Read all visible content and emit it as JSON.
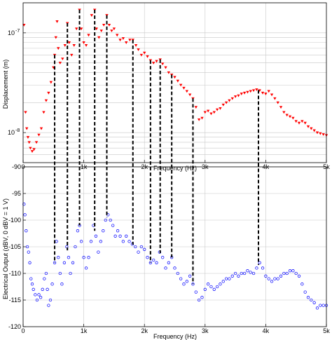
{
  "chart_data": [
    {
      "type": "scatter",
      "title": "",
      "xlabel": "Frequency (Hz)",
      "ylabel": "Displacement (m)",
      "xlim": [
        0,
        5000
      ],
      "ylog": true,
      "ylim": [
        5e-09,
        2e-07
      ],
      "grid": true,
      "x_ticks": [
        {
          "value": 0,
          "label": "0"
        },
        {
          "value": 1000,
          "label": "1k"
        },
        {
          "value": 2000,
          "label": "2k"
        },
        {
          "value": 3000,
          "label": "3k"
        },
        {
          "value": 4000,
          "label": "4k"
        },
        {
          "value": 5000,
          "label": "5k"
        }
      ],
      "y_ticks": [
        {
          "value": 1e-08,
          "label": "10",
          "exp": "-8"
        },
        {
          "value": 1e-07,
          "label": "10",
          "exp": "-7"
        }
      ],
      "marker_color": "#ff0000",
      "series": [
        {
          "marker": "triangle-down",
          "points": [
            [
              15,
              1.2e-07
            ],
            [
              40,
              1.6e-08
            ],
            [
              60,
              1.1e-08
            ],
            [
              80,
              9e-09
            ],
            [
              100,
              8e-09
            ],
            [
              120,
              7e-09
            ],
            [
              150,
              6.5e-09
            ],
            [
              180,
              6.8e-09
            ],
            [
              220,
              8e-09
            ],
            [
              260,
              9.5e-09
            ],
            [
              300,
              1.1e-08
            ],
            [
              340,
              1.6e-08
            ],
            [
              380,
              2.1e-08
            ],
            [
              420,
              2.5e-08
            ],
            [
              460,
              3.2e-08
            ],
            [
              500,
              4.5e-08
            ],
            [
              520,
              6e-08
            ],
            [
              540,
              9e-08
            ],
            [
              560,
              1.3e-07
            ],
            [
              580,
              7e-08
            ],
            [
              610,
              5e-08
            ],
            [
              650,
              5.5e-08
            ],
            [
              690,
              7.5e-08
            ],
            [
              730,
              1.25e-07
            ],
            [
              760,
              8e-08
            ],
            [
              800,
              6e-08
            ],
            [
              840,
              7.5e-08
            ],
            [
              880,
              1.1e-07
            ],
            [
              930,
              1.7e-07
            ],
            [
              960,
              1.1e-07
            ],
            [
              1000,
              8e-08
            ],
            [
              1040,
              7.5e-08
            ],
            [
              1080,
              9.5e-08
            ],
            [
              1130,
              1.5e-07
            ],
            [
              1180,
              1.7e-07
            ],
            [
              1210,
              1.1e-07
            ],
            [
              1250,
              9e-08
            ],
            [
              1290,
              1.05e-07
            ],
            [
              1330,
              1.2e-07
            ],
            [
              1380,
              1.5e-07
            ],
            [
              1420,
              1.2e-07
            ],
            [
              1460,
              1.05e-07
            ],
            [
              1500,
              1.1e-07
            ],
            [
              1550,
              9.5e-08
            ],
            [
              1600,
              8.5e-08
            ],
            [
              1650,
              8.8e-08
            ],
            [
              1700,
              8e-08
            ],
            [
              1760,
              8.5e-08
            ],
            [
              1810,
              8.5e-08
            ],
            [
              1860,
              7.5e-08
            ],
            [
              1900,
              6.8e-08
            ],
            [
              1950,
              6e-08
            ],
            [
              2000,
              6.3e-08
            ],
            [
              2050,
              5.8e-08
            ],
            [
              2100,
              5.3e-08
            ],
            [
              2150,
              5e-08
            ],
            [
              2200,
              5.2e-08
            ],
            [
              2260,
              5.4e-08
            ],
            [
              2300,
              4.9e-08
            ],
            [
              2350,
              4.5e-08
            ],
            [
              2400,
              4e-08
            ],
            [
              2450,
              3.8e-08
            ],
            [
              2500,
              3.6e-08
            ],
            [
              2550,
              3.3e-08
            ],
            [
              2600,
              3e-08
            ],
            [
              2650,
              2.8e-08
            ],
            [
              2700,
              2.6e-08
            ],
            [
              2750,
              2.4e-08
            ],
            [
              2800,
              2.2e-08
            ],
            [
              2850,
              1.8e-08
            ],
            [
              2900,
              1.35e-08
            ],
            [
              2950,
              1.4e-08
            ],
            [
              3000,
              1.6e-08
            ],
            [
              3050,
              1.65e-08
            ],
            [
              3100,
              1.55e-08
            ],
            [
              3150,
              1.6e-08
            ],
            [
              3200,
              1.7e-08
            ],
            [
              3250,
              1.75e-08
            ],
            [
              3300,
              1.9e-08
            ],
            [
              3350,
              2e-08
            ],
            [
              3400,
              2.1e-08
            ],
            [
              3450,
              2.2e-08
            ],
            [
              3500,
              2.3e-08
            ],
            [
              3550,
              2.35e-08
            ],
            [
              3600,
              2.45e-08
            ],
            [
              3650,
              2.5e-08
            ],
            [
              3700,
              2.55e-08
            ],
            [
              3750,
              2.6e-08
            ],
            [
              3800,
              2.65e-08
            ],
            [
              3850,
              2.7e-08
            ],
            [
              3900,
              2.65e-08
            ],
            [
              3950,
              2.5e-08
            ],
            [
              4000,
              2.45e-08
            ],
            [
              4050,
              2.6e-08
            ],
            [
              4100,
              2.4e-08
            ],
            [
              4150,
              2.2e-08
            ],
            [
              4200,
              2e-08
            ],
            [
              4250,
              1.8e-08
            ],
            [
              4300,
              1.6e-08
            ],
            [
              4350,
              1.5e-08
            ],
            [
              4400,
              1.45e-08
            ],
            [
              4450,
              1.4e-08
            ],
            [
              4500,
              1.3e-08
            ],
            [
              4550,
              1.25e-08
            ],
            [
              4600,
              1.3e-08
            ],
            [
              4650,
              1.25e-08
            ],
            [
              4700,
              1.15e-08
            ],
            [
              4750,
              1.1e-08
            ],
            [
              4800,
              1.05e-08
            ],
            [
              4850,
              1e-08
            ],
            [
              4900,
              9.8e-09
            ],
            [
              4950,
              9.6e-09
            ],
            [
              5000,
              9.4e-09
            ]
          ]
        }
      ]
    },
    {
      "type": "scatter",
      "title": "",
      "xlabel": "Frequency (Hz)",
      "ylabel": "Electrical Output (dBV, 0 dBV = 1 V)",
      "xlim": [
        0,
        5000
      ],
      "ylim": [
        -120,
        -90
      ],
      "grid": true,
      "x_ticks": [
        {
          "value": 0,
          "label": "0"
        },
        {
          "value": 1000,
          "label": "1k"
        },
        {
          "value": 2000,
          "label": "2k"
        },
        {
          "value": 3000,
          "label": "3k"
        },
        {
          "value": 4000,
          "label": "4k"
        },
        {
          "value": 5000,
          "label": "5k"
        }
      ],
      "y_ticks": [
        {
          "value": -90,
          "label": "-90"
        },
        {
          "value": -95,
          "label": "-95"
        },
        {
          "value": -100,
          "label": "-100"
        },
        {
          "value": -105,
          "label": "-105"
        },
        {
          "value": -110,
          "label": "-110"
        },
        {
          "value": -115,
          "label": "-115"
        },
        {
          "value": -120,
          "label": "-120"
        }
      ],
      "marker_color": "#0000ff",
      "series": [
        {
          "marker": "circle",
          "points": [
            [
              15,
              -97
            ],
            [
              30,
              -99
            ],
            [
              50,
              -102
            ],
            [
              70,
              -105
            ],
            [
              90,
              -106
            ],
            [
              110,
              -108
            ],
            [
              130,
              -111
            ],
            [
              150,
              -112
            ],
            [
              170,
              -113
            ],
            [
              200,
              -114
            ],
            [
              230,
              -115
            ],
            [
              260,
              -114
            ],
            [
              290,
              -114.5
            ],
            [
              320,
              -113
            ],
            [
              350,
              -111
            ],
            [
              380,
              -110
            ],
            [
              400,
              -113
            ],
            [
              420,
              -116
            ],
            [
              450,
              -115
            ],
            [
              480,
              -112
            ],
            [
              520,
              -108
            ],
            [
              550,
              -104
            ],
            [
              580,
              -107
            ],
            [
              610,
              -110
            ],
            [
              640,
              -112
            ],
            [
              680,
              -108
            ],
            [
              720,
              -105
            ],
            [
              750,
              -107
            ],
            [
              780,
              -110
            ],
            [
              820,
              -108
            ],
            [
              860,
              -105
            ],
            [
              900,
              -102
            ],
            [
              930,
              -101
            ],
            [
              960,
              -104
            ],
            [
              1000,
              -107
            ],
            [
              1040,
              -109
            ],
            [
              1080,
              -107
            ],
            [
              1120,
              -104
            ],
            [
              1160,
              -101
            ],
            [
              1200,
              -103
            ],
            [
              1240,
              -106
            ],
            [
              1280,
              -104
            ],
            [
              1320,
              -102
            ],
            [
              1360,
              -100
            ],
            [
              1400,
              -99
            ],
            [
              1440,
              -100
            ],
            [
              1480,
              -101
            ],
            [
              1520,
              -103
            ],
            [
              1560,
              -102
            ],
            [
              1600,
              -103
            ],
            [
              1650,
              -104
            ],
            [
              1700,
              -103
            ],
            [
              1750,
              -104
            ],
            [
              1800,
              -104.5
            ],
            [
              1850,
              -105
            ],
            [
              1900,
              -106
            ],
            [
              1950,
              -105
            ],
            [
              2000,
              -105.5
            ],
            [
              2050,
              -107
            ],
            [
              2100,
              -108
            ],
            [
              2150,
              -107.5
            ],
            [
              2200,
              -108
            ],
            [
              2250,
              -106
            ],
            [
              2300,
              -107
            ],
            [
              2350,
              -109
            ],
            [
              2400,
              -108
            ],
            [
              2450,
              -107
            ],
            [
              2500,
              -109
            ],
            [
              2550,
              -110
            ],
            [
              2600,
              -111
            ],
            [
              2650,
              -112
            ],
            [
              2700,
              -111.5
            ],
            [
              2750,
              -110.5
            ],
            [
              2800,
              -112
            ],
            [
              2850,
              -113.5
            ],
            [
              2900,
              -115
            ],
            [
              2950,
              -114.5
            ],
            [
              3000,
              -113
            ],
            [
              3050,
              -112
            ],
            [
              3100,
              -112.5
            ],
            [
              3150,
              -113
            ],
            [
              3200,
              -112.5
            ],
            [
              3250,
              -112
            ],
            [
              3300,
              -111.5
            ],
            [
              3350,
              -111
            ],
            [
              3400,
              -111
            ],
            [
              3450,
              -110.5
            ],
            [
              3500,
              -110
            ],
            [
              3550,
              -110.5
            ],
            [
              3600,
              -110
            ],
            [
              3650,
              -110
            ],
            [
              3700,
              -109.5
            ],
            [
              3750,
              -109.8
            ],
            [
              3800,
              -110
            ],
            [
              3850,
              -109
            ],
            [
              3900,
              -108
            ],
            [
              3950,
              -109
            ],
            [
              4000,
              -110.5
            ],
            [
              4050,
              -111
            ],
            [
              4100,
              -111.5
            ],
            [
              4150,
              -111
            ],
            [
              4200,
              -111
            ],
            [
              4250,
              -110.5
            ],
            [
              4300,
              -110
            ],
            [
              4350,
              -110
            ],
            [
              4400,
              -109.5
            ],
            [
              4450,
              -109.5
            ],
            [
              4500,
              -110
            ],
            [
              4550,
              -110.5
            ],
            [
              4600,
              -112
            ],
            [
              4650,
              -113.5
            ],
            [
              4700,
              -114.5
            ],
            [
              4750,
              -115
            ],
            [
              4800,
              -115.5
            ],
            [
              4850,
              -116.5
            ],
            [
              4900,
              -116
            ],
            [
              4950,
              -116
            ],
            [
              5000,
              -116
            ]
          ]
        }
      ]
    }
  ],
  "correspondence_frequencies": [
    520,
    730,
    930,
    1180,
    1380,
    1810,
    2100,
    2260,
    2450,
    2800,
    3880
  ],
  "line_color": "#000000"
}
